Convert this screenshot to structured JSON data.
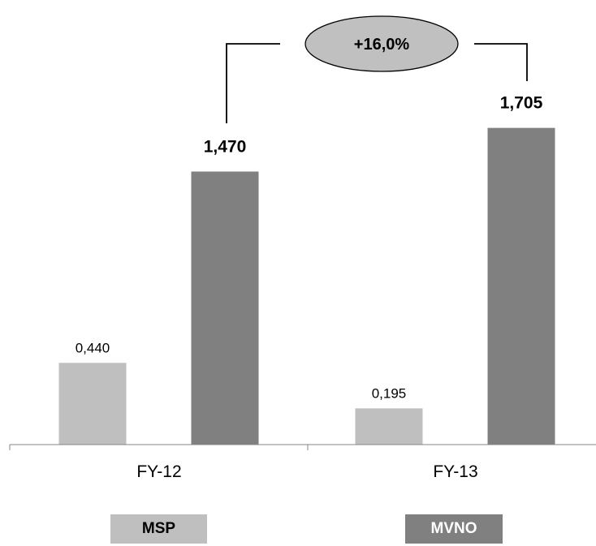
{
  "chart_data": {
    "type": "bar",
    "categories": [
      "FY-12",
      "FY-13"
    ],
    "series": [
      {
        "name": "MSP",
        "values": [
          0.44,
          0.195
        ],
        "labels": [
          "0,440",
          "0,195"
        ],
        "color": "#bfbfbf"
      },
      {
        "name": "MVNO",
        "values": [
          1.47,
          1.705
        ],
        "labels": [
          "1,470",
          "1,705"
        ],
        "color": "#808080"
      }
    ],
    "ylim": [
      0,
      1.9
    ],
    "grid": false,
    "annotation": {
      "text": "+16,0%",
      "fill": "#c0c0c0"
    },
    "legend": {
      "placement": "bottom",
      "items": [
        {
          "label": "MSP",
          "color": "#bfbfbf"
        },
        {
          "label": "MVNO",
          "color": "#808080"
        }
      ]
    }
  }
}
